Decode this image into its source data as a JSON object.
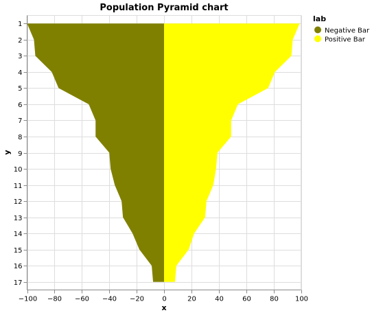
{
  "chart_data": {
    "type": "area",
    "title": "Population Pyramid chart",
    "xlabel": "x",
    "ylabel": "y",
    "xlim": [
      -100,
      100
    ],
    "x_ticks": [
      -100,
      -80,
      -60,
      -40,
      -20,
      0,
      20,
      40,
      60,
      80,
      100
    ],
    "categories": [
      "1",
      "2",
      "3",
      "4",
      "5",
      "6",
      "7",
      "8",
      "9",
      "10",
      "11",
      "12",
      "13",
      "14",
      "15",
      "16",
      "17"
    ],
    "legend": {
      "title": "lab",
      "position": "top-right"
    },
    "grid": true,
    "series": [
      {
        "name": "Negative Bar",
        "color": "#808000",
        "values": [
          -100,
          -95,
          -94,
          -82,
          -77,
          -55,
          -50,
          -50,
          -40,
          -39,
          -36,
          -31,
          -30,
          -23,
          -18,
          -9,
          -8
        ]
      },
      {
        "name": "Positive Bar",
        "color": "#ffff00",
        "values": [
          99,
          94,
          93,
          81,
          76,
          54,
          49,
          49,
          39,
          38,
          36,
          31,
          30,
          22,
          18,
          9,
          8
        ]
      }
    ]
  }
}
